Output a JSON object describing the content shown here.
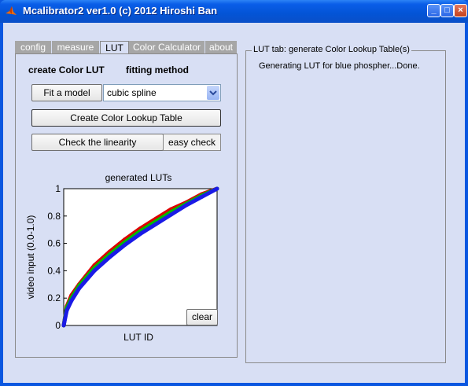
{
  "window": {
    "title": "Mcalibrator2 ver1.0 (c) 2012 Hiroshi Ban",
    "minimize": "_",
    "maximize": "□",
    "close": "×"
  },
  "tabs": [
    {
      "label": "config",
      "active": false
    },
    {
      "label": "measure",
      "active": false
    },
    {
      "label": "LUT",
      "active": true
    },
    {
      "label": "Color Calculator",
      "active": false
    },
    {
      "label": "about",
      "active": false
    }
  ],
  "lut_panel": {
    "create_label": "create Color LUT",
    "fitting_label": "fitting method",
    "fit_button": "Fit a model",
    "method_select": "cubic spline",
    "create_button": "Create Color Lookup Table",
    "check_button": "Check the linearity",
    "easy_check": "easy check",
    "clear_button": "clear"
  },
  "status_group": {
    "title": "LUT tab: generate Color Lookup Table(s)",
    "message": "Generating LUT for blue phospher...Done."
  },
  "colors": {
    "red": "#dd0000",
    "green": "#00bb00",
    "blue": "#1a1ae6"
  },
  "chart_data": {
    "type": "line",
    "title": "generated LUTs",
    "xlabel": "LUT ID",
    "ylabel": "video input (0.0-1.0)",
    "ylim": [
      0,
      1
    ],
    "yticks": [
      "0",
      "0.2",
      "0.4",
      "0.6",
      "0.8",
      "1"
    ],
    "x": [
      0,
      0.02,
      0.05,
      0.1,
      0.2,
      0.3,
      0.4,
      0.5,
      0.6,
      0.7,
      0.8,
      0.9,
      1.0
    ],
    "series": [
      {
        "color": "red",
        "values": [
          0,
          0.14,
          0.22,
          0.3,
          0.44,
          0.54,
          0.63,
          0.71,
          0.78,
          0.85,
          0.9,
          0.96,
          1.0
        ]
      },
      {
        "color": "green",
        "values": [
          0,
          0.13,
          0.2,
          0.29,
          0.42,
          0.52,
          0.61,
          0.69,
          0.76,
          0.83,
          0.89,
          0.95,
          1.0
        ]
      },
      {
        "color": "blue",
        "values": [
          0,
          0.11,
          0.18,
          0.27,
          0.4,
          0.5,
          0.59,
          0.67,
          0.74,
          0.81,
          0.88,
          0.94,
          1.0
        ]
      }
    ]
  }
}
